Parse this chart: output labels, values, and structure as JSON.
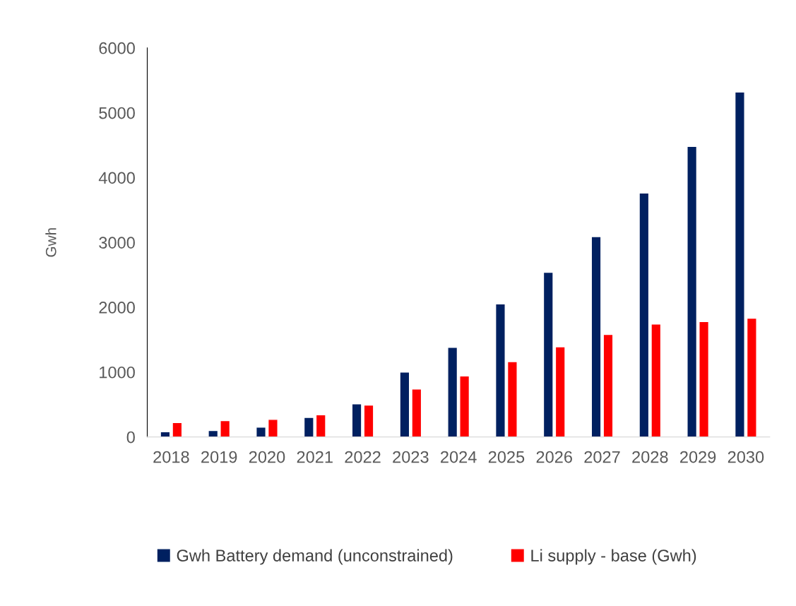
{
  "chart_data": {
    "type": "bar",
    "ylabel": "Gwh",
    "categories": [
      "2018",
      "2019",
      "2020",
      "2021",
      "2022",
      "2023",
      "2024",
      "2025",
      "2026",
      "2027",
      "2028",
      "2029",
      "2030"
    ],
    "series": [
      {
        "name": "Gwh Battery demand (unconstrained)",
        "color": "#002060",
        "values": [
          80,
          100,
          150,
          300,
          510,
          1000,
          1380,
          2050,
          2540,
          3090,
          3760,
          4480,
          5320
        ]
      },
      {
        "name": "Li supply - base (Gwh)",
        "color": "#ff0000",
        "values": [
          220,
          250,
          270,
          340,
          490,
          740,
          940,
          1160,
          1390,
          1580,
          1740,
          1780,
          1830
        ]
      }
    ],
    "ylim": [
      0,
      6000
    ],
    "yticks": [
      0,
      1000,
      2000,
      3000,
      4000,
      5000,
      6000
    ],
    "grid": false,
    "legend": "bottom"
  }
}
